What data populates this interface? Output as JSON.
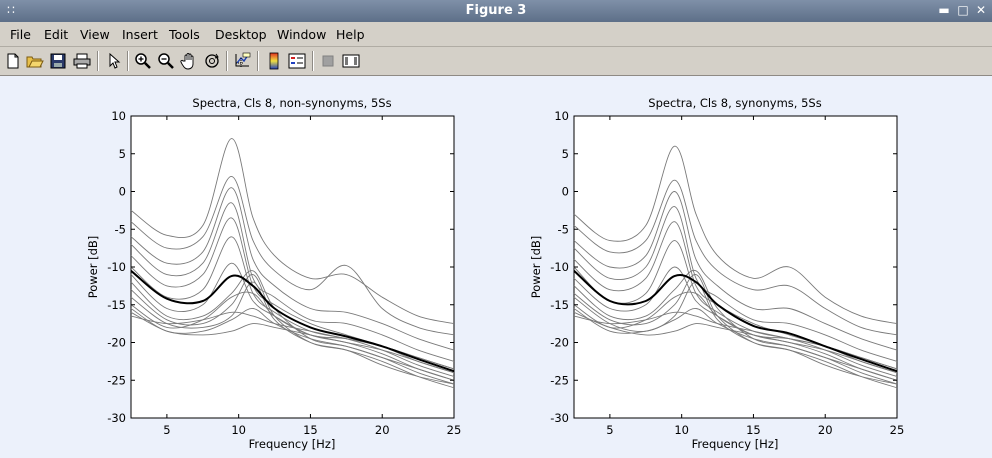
{
  "window": {
    "title": "Figure 3"
  },
  "menu": [
    "File",
    "Edit",
    "View",
    "Insert",
    "Tools",
    "Desktop",
    "Window",
    "Help"
  ],
  "toolbar_icons": [
    "new-file-icon",
    "open-file-icon",
    "save-icon",
    "print-icon",
    "pointer-icon",
    "zoom-in-icon",
    "zoom-out-icon",
    "pan-hand-icon",
    "rotate-3d-icon",
    "data-cursor-icon",
    "colorbar-icon",
    "legend-icon",
    "hide-plot-tools-icon",
    "show-plot-tools-icon"
  ],
  "chart_data": [
    {
      "type": "line",
      "title": "Spectra, Cls 8, non-synonyms, 5Ss",
      "xlabel": "Frequency [Hz]",
      "ylabel": "Power [dB]",
      "xlim": [
        2.5,
        25
      ],
      "ylim": [
        -30,
        10
      ],
      "xticks": [
        5,
        10,
        15,
        20,
        25
      ],
      "yticks": [
        -30,
        -25,
        -20,
        -15,
        -10,
        -5,
        0,
        5,
        10
      ],
      "grid": false,
      "x": [
        2.5,
        5,
        7.5,
        9.5,
        11,
        12.5,
        15,
        17.5,
        20,
        22.5,
        25
      ],
      "series": [
        {
          "role": "mean",
          "values": [
            -10.5,
            -14.2,
            -14.5,
            -11.2,
            -12.5,
            -15.5,
            -18.0,
            -19.2,
            -20.5,
            -22.2,
            -23.8
          ]
        },
        {
          "values": [
            -2.5,
            -5.8,
            -4.5,
            7.0,
            -3.5,
            -8.5,
            -11.5,
            -11.0,
            -14.0,
            -16.5,
            -17.5
          ]
        },
        {
          "values": [
            -4.0,
            -7.5,
            -6.0,
            2.0,
            -6.5,
            -10.5,
            -13.0,
            -9.8,
            -15.5,
            -18.0,
            -19.0
          ]
        },
        {
          "values": [
            -6.0,
            -9.5,
            -8.0,
            0.5,
            -9.0,
            -12.5,
            -15.5,
            -16.0,
            -17.5,
            -19.5,
            -21.0
          ]
        },
        {
          "values": [
            -7.0,
            -11.0,
            -9.5,
            -1.5,
            -11.5,
            -14.0,
            -17.0,
            -17.5,
            -19.0,
            -21.0,
            -22.5
          ]
        },
        {
          "values": [
            -8.5,
            -12.5,
            -11.0,
            -3.5,
            -12.5,
            -15.0,
            -17.5,
            -19.0,
            -20.5,
            -22.5,
            -24.0
          ]
        },
        {
          "values": [
            -10.0,
            -14.0,
            -13.0,
            -6.0,
            -13.5,
            -16.0,
            -18.5,
            -19.5,
            -21.0,
            -23.0,
            -24.5
          ]
        },
        {
          "values": [
            -11.0,
            -15.5,
            -15.0,
            -9.5,
            -14.5,
            -16.5,
            -19.0,
            -20.0,
            -21.5,
            -23.5,
            -25.0
          ]
        },
        {
          "values": [
            -12.0,
            -16.5,
            -16.5,
            -13.5,
            -10.5,
            -15.5,
            -19.5,
            -20.5,
            -22.0,
            -24.0,
            -25.5
          ]
        },
        {
          "values": [
            -13.0,
            -17.0,
            -17.5,
            -15.0,
            -11.0,
            -16.5,
            -20.0,
            -21.0,
            -22.5,
            -24.5,
            -26.0
          ]
        },
        {
          "values": [
            -14.0,
            -17.5,
            -18.0,
            -16.5,
            -12.0,
            -17.0,
            -20.0,
            -21.0,
            -23.0,
            -24.5,
            -25.5
          ]
        },
        {
          "values": [
            -15.0,
            -18.0,
            -17.0,
            -14.0,
            -13.5,
            -16.5,
            -19.0,
            -19.5,
            -20.5,
            -22.0,
            -23.5
          ]
        },
        {
          "values": [
            -15.5,
            -18.5,
            -18.5,
            -17.0,
            -15.5,
            -17.5,
            -19.5,
            -20.5,
            -22.0,
            -23.5,
            -25.0
          ]
        },
        {
          "values": [
            -16.0,
            -18.5,
            -19.0,
            -18.5,
            -17.5,
            -18.0,
            -19.0,
            -20.0,
            -21.0,
            -22.5,
            -24.0
          ]
        },
        {
          "values": [
            -16.5,
            -17.5,
            -17.0,
            -16.0,
            -16.5,
            -17.5,
            -18.5,
            -19.5,
            -20.5,
            -22.0,
            -23.5
          ]
        }
      ]
    },
    {
      "type": "line",
      "title": "Spectra, Cls 8, synonyms, 5Ss",
      "xlabel": "Frequency [Hz]",
      "ylabel": "Power [dB]",
      "xlim": [
        2.5,
        25
      ],
      "ylim": [
        -30,
        10
      ],
      "xticks": [
        5,
        10,
        15,
        20,
        25
      ],
      "yticks": [
        -30,
        -25,
        -20,
        -15,
        -10,
        -5,
        0,
        5,
        10
      ],
      "grid": false,
      "x": [
        2.5,
        5,
        7.5,
        9.5,
        11,
        12.5,
        15,
        17.5,
        20,
        22.5,
        25
      ],
      "series": [
        {
          "role": "mean",
          "values": [
            -10.5,
            -14.5,
            -14.5,
            -11.2,
            -12.0,
            -15.0,
            -17.8,
            -18.8,
            -20.5,
            -22.2,
            -23.8
          ]
        },
        {
          "values": [
            -3.0,
            -6.5,
            -4.5,
            6.0,
            -3.0,
            -8.5,
            -11.5,
            -10.0,
            -14.0,
            -16.5,
            -17.5
          ]
        },
        {
          "values": [
            -4.5,
            -8.0,
            -6.5,
            1.5,
            -6.5,
            -10.5,
            -13.0,
            -12.5,
            -15.5,
            -18.0,
            -19.0
          ]
        },
        {
          "values": [
            -6.5,
            -10.0,
            -8.5,
            0.0,
            -9.0,
            -12.5,
            -15.5,
            -15.5,
            -17.5,
            -19.5,
            -21.0
          ]
        },
        {
          "values": [
            -7.5,
            -11.5,
            -10.0,
            -2.0,
            -11.5,
            -14.0,
            -17.0,
            -17.5,
            -19.0,
            -21.0,
            -22.5
          ]
        },
        {
          "values": [
            -9.0,
            -13.0,
            -11.5,
            -4.0,
            -12.5,
            -15.0,
            -17.5,
            -19.0,
            -20.5,
            -22.5,
            -24.0
          ]
        },
        {
          "values": [
            -10.0,
            -14.5,
            -13.5,
            -6.5,
            -13.5,
            -16.0,
            -18.5,
            -19.5,
            -21.0,
            -23.0,
            -24.5
          ]
        },
        {
          "values": [
            -11.5,
            -15.5,
            -15.0,
            -10.0,
            -14.5,
            -16.5,
            -19.0,
            -20.0,
            -21.5,
            -23.5,
            -25.0
          ]
        },
        {
          "values": [
            -12.5,
            -16.5,
            -16.5,
            -13.0,
            -10.5,
            -15.5,
            -19.5,
            -20.5,
            -22.0,
            -24.0,
            -25.5
          ]
        },
        {
          "values": [
            -13.5,
            -17.0,
            -17.5,
            -15.0,
            -11.0,
            -16.5,
            -20.0,
            -21.0,
            -22.5,
            -24.5,
            -26.0
          ]
        },
        {
          "values": [
            -14.0,
            -17.5,
            -18.5,
            -16.5,
            -12.0,
            -17.0,
            -20.0,
            -21.0,
            -23.0,
            -24.5,
            -25.5
          ]
        },
        {
          "values": [
            -15.0,
            -18.0,
            -17.0,
            -14.0,
            -13.5,
            -16.5,
            -19.0,
            -19.5,
            -20.5,
            -22.0,
            -23.5
          ]
        },
        {
          "values": [
            -15.5,
            -18.5,
            -18.5,
            -17.0,
            -15.5,
            -17.5,
            -19.5,
            -20.5,
            -22.0,
            -23.5,
            -25.0
          ]
        },
        {
          "values": [
            -16.0,
            -18.0,
            -19.0,
            -18.5,
            -17.5,
            -18.0,
            -19.0,
            -20.0,
            -21.0,
            -22.5,
            -24.0
          ]
        },
        {
          "values": [
            -16.5,
            -17.5,
            -17.0,
            -16.0,
            -16.5,
            -17.5,
            -18.5,
            -19.5,
            -20.5,
            -22.0,
            -23.5
          ]
        }
      ]
    }
  ]
}
